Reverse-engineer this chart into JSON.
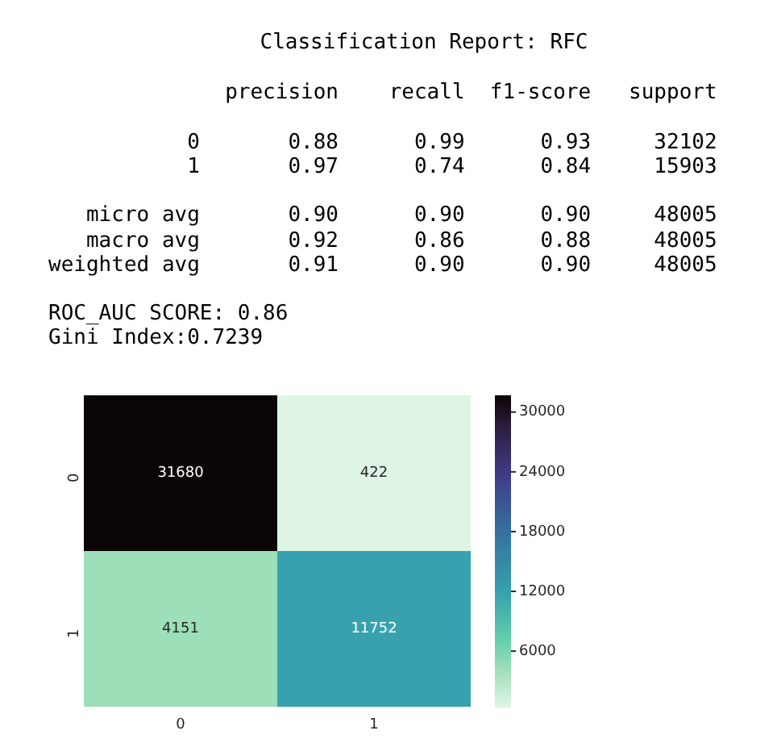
{
  "chart_data": {
    "type": "heatmap",
    "title": "Classification Report: RFC",
    "annotations": [
      "              precision    recall  f1-score   support\n\n           0       0.88      0.99      0.93     32102\n           1       0.97      0.74      0.84     15903\n\n   micro avg       0.90      0.90      0.90     48005\n   macro avg       0.92      0.86      0.88     48005\nweighted avg       0.91      0.90      0.90     48005",
      "ROC_AUC SCORE: 0.86\nGini Index:0.7239"
    ],
    "categories": [
      "0",
      "1"
    ],
    "y_categories": [
      "0",
      "1"
    ],
    "cells": [
      [
        31680,
        422
      ],
      [
        4151,
        11752
      ]
    ],
    "clim": [
      422,
      31680
    ],
    "cticks": [
      6000,
      12000,
      18000,
      24000,
      30000
    ],
    "data_labels": true,
    "grid": false,
    "legend": false
  }
}
